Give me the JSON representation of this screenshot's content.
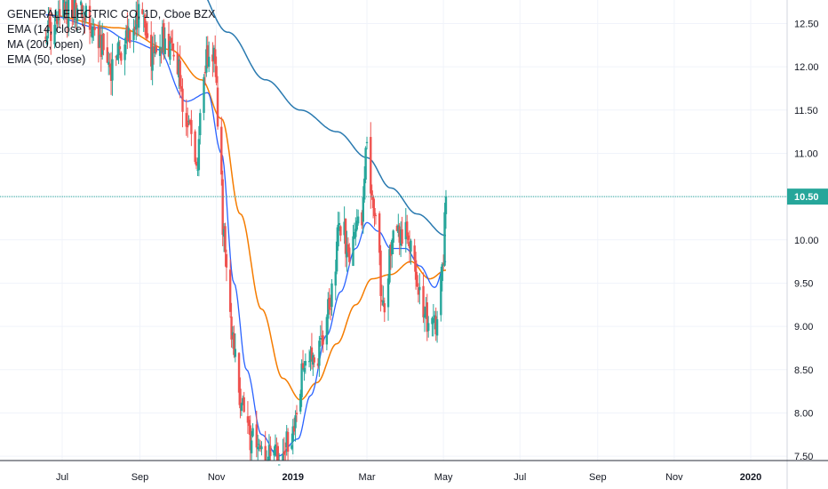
{
  "legend": {
    "title": "GENERAL ELECTRIC CO, 1D, Cboe BZX",
    "ema14": "EMA (14, close)",
    "ma200": "MA (200, open)",
    "ema50": "EMA (50, close)"
  },
  "colors": {
    "up": "#26a69a",
    "down": "#ef5350",
    "ema14": "#2962ff",
    "ma200": "#2a7ab0",
    "ema50": "#f57c00",
    "price_line": "#26a69a",
    "grid": "#f0f3fa"
  },
  "chart_data": {
    "type": "candlestick",
    "title": "GENERAL ELECTRIC CO, 1D, Cboe BZX",
    "xlabel": "",
    "ylabel": "",
    "x_tick_labels": [
      "Jul",
      "Sep",
      "Nov",
      "2019",
      "Mar",
      "May",
      "Jul",
      "Sep",
      "Nov",
      "2020"
    ],
    "y_tick_labels": [
      "12.50",
      "12.00",
      "11.50",
      "11.00",
      "10.50",
      "10.00",
      "9.50",
      "9.00",
      "8.50",
      "8.00",
      "7.50"
    ],
    "ylim": [
      7.45,
      12.7
    ],
    "last_price": "10.50",
    "last_price_value": 10.5,
    "grid": true,
    "price_anchors": [
      [
        "2018-06-18",
        12.4
      ],
      [
        "2018-07-10",
        12.7
      ],
      [
        "2018-07-24",
        12.5
      ],
      [
        "2018-08-01",
        12.2
      ],
      [
        "2018-08-09",
        12.0
      ],
      [
        "2018-08-24",
        12.4
      ],
      [
        "2018-09-01",
        12.6
      ],
      [
        "2018-09-10",
        12.1
      ],
      [
        "2018-09-20",
        12.3
      ],
      [
        "2018-10-01",
        12.0
      ],
      [
        "2018-10-08",
        11.4
      ],
      [
        "2018-10-16",
        10.9
      ],
      [
        "2018-10-22",
        12.0
      ],
      [
        "2018-10-30",
        12.2
      ],
      [
        "2018-11-03",
        11.3
      ],
      [
        "2018-11-07",
        10.0
      ],
      [
        "2018-11-13",
        9.0
      ],
      [
        "2018-11-19",
        8.2
      ],
      [
        "2018-11-28",
        7.7
      ],
      [
        "2018-12-10",
        7.45
      ],
      [
        "2018-12-21",
        7.5
      ],
      [
        "2019-01-02",
        7.8
      ],
      [
        "2019-01-11",
        8.6
      ],
      [
        "2019-01-22",
        8.7
      ],
      [
        "2019-01-31",
        9.3
      ],
      [
        "2019-02-08",
        10.2
      ],
      [
        "2019-02-15",
        9.8
      ],
      [
        "2019-02-25",
        10.3
      ],
      [
        "2019-03-01",
        11.0
      ],
      [
        "2019-03-07",
        10.4
      ],
      [
        "2019-03-14",
        9.3
      ],
      [
        "2019-03-21",
        10.0
      ],
      [
        "2019-03-28",
        10.1
      ],
      [
        "2019-04-04",
        10.0
      ],
      [
        "2019-04-11",
        9.5
      ],
      [
        "2019-04-18",
        9.1
      ],
      [
        "2019-04-24",
        9.0
      ],
      [
        "2019-04-30",
        9.6
      ],
      [
        "2019-05-03",
        10.5
      ]
    ],
    "ema14_anchors": [
      [
        "2018-06-18",
        12.6
      ],
      [
        "2018-08-01",
        12.45
      ],
      [
        "2018-08-24",
        12.3
      ],
      [
        "2018-09-15",
        12.2
      ],
      [
        "2018-10-08",
        11.6
      ],
      [
        "2018-10-25",
        11.7
      ],
      [
        "2018-11-05",
        11.0
      ],
      [
        "2018-11-15",
        9.5
      ],
      [
        "2018-11-25",
        8.5
      ],
      [
        "2018-12-07",
        7.75
      ],
      [
        "2018-12-20",
        7.5
      ],
      [
        "2019-01-05",
        7.7
      ],
      [
        "2019-01-15",
        8.2
      ],
      [
        "2019-01-28",
        8.9
      ],
      [
        "2019-02-08",
        9.4
      ],
      [
        "2019-02-20",
        9.9
      ],
      [
        "2019-03-01",
        10.2
      ],
      [
        "2019-03-10",
        10.1
      ],
      [
        "2019-03-20",
        9.9
      ],
      [
        "2019-04-01",
        9.9
      ],
      [
        "2019-04-12",
        9.7
      ],
      [
        "2019-04-24",
        9.45
      ],
      [
        "2019-05-03",
        9.75
      ]
    ],
    "ema50_anchors": [
      [
        "2018-06-18",
        12.6
      ],
      [
        "2018-08-15",
        12.45
      ],
      [
        "2018-09-25",
        12.2
      ],
      [
        "2018-10-20",
        11.85
      ],
      [
        "2018-11-05",
        11.4
      ],
      [
        "2018-11-20",
        10.3
      ],
      [
        "2018-12-07",
        9.2
      ],
      [
        "2018-12-24",
        8.4
      ],
      [
        "2019-01-07",
        8.15
      ],
      [
        "2019-01-20",
        8.35
      ],
      [
        "2019-02-05",
        8.8
      ],
      [
        "2019-02-20",
        9.25
      ],
      [
        "2019-03-05",
        9.55
      ],
      [
        "2019-03-20",
        9.6
      ],
      [
        "2019-04-05",
        9.75
      ],
      [
        "2019-04-20",
        9.55
      ],
      [
        "2019-05-03",
        9.65
      ]
    ],
    "ma200_anchors": [
      [
        "2018-10-15",
        12.95
      ],
      [
        "2018-11-10",
        12.4
      ],
      [
        "2018-12-10",
        11.85
      ],
      [
        "2019-01-07",
        11.5
      ],
      [
        "2019-02-05",
        11.25
      ],
      [
        "2019-03-01",
        10.95
      ],
      [
        "2019-03-20",
        10.6
      ],
      [
        "2019-04-10",
        10.3
      ],
      [
        "2019-05-03",
        10.05
      ]
    ]
  }
}
